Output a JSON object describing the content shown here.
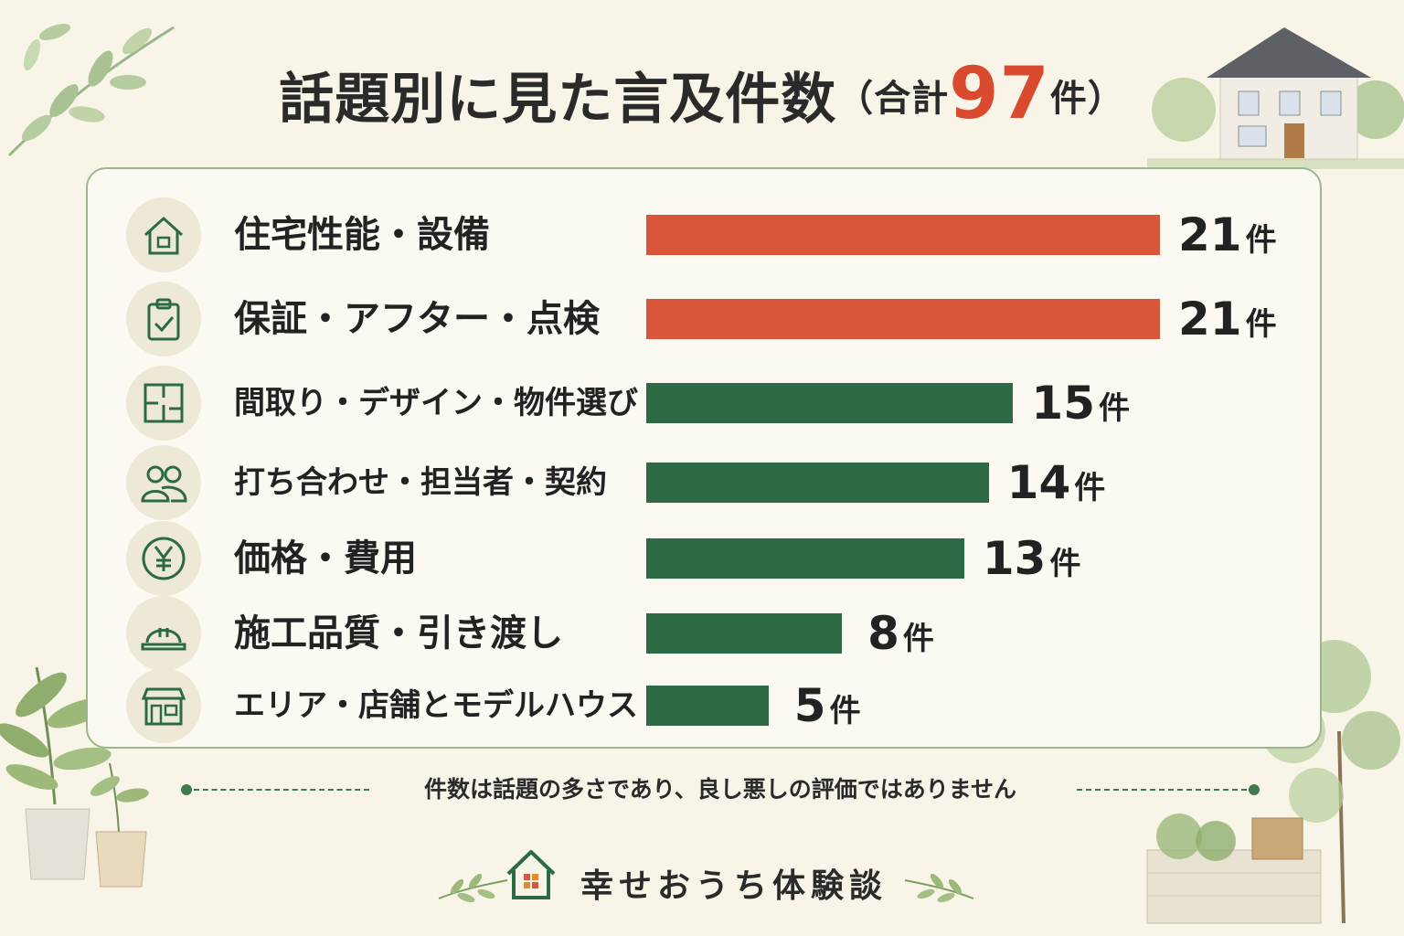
{
  "title": {
    "main": "話題別に見た言及件数",
    "paren_open": "（合計",
    "total": "97",
    "paren_close": "件）"
  },
  "chart_data": {
    "type": "bar",
    "orientation": "horizontal",
    "title": "話題別に見た言及件数（合計97件）",
    "categories": [
      "住宅性能・設備",
      "保証・アフター・点検",
      "間取り・デザイン・物件選び",
      "打ち合わせ・担当者・契約",
      "価格・費用",
      "施工品質・引き渡し",
      "エリア・店舗とモデルハウス"
    ],
    "values": [
      21,
      21,
      15,
      14,
      13,
      8,
      5
    ],
    "unit": "件",
    "xlim": [
      0,
      21
    ],
    "grid": false,
    "colors": {
      "highlight": "#d9563a",
      "default": "#2b6a45"
    },
    "bar_colors": [
      "highlight",
      "highlight",
      "default",
      "default",
      "default",
      "default",
      "default"
    ],
    "icons": [
      "house-icon",
      "clipboard-check-icon",
      "floor-plan-icon",
      "people-icon",
      "yen-icon",
      "hard-hat-icon",
      "shop-icon"
    ]
  },
  "note": "件数は話題の多さであり、良し悪しの評価ではありません",
  "footer": {
    "brand": "幸せおうち体験談"
  },
  "colors": {
    "accent_red": "#d94a2f",
    "brand_green": "#2b6a45",
    "background": "#f8f4e8"
  }
}
